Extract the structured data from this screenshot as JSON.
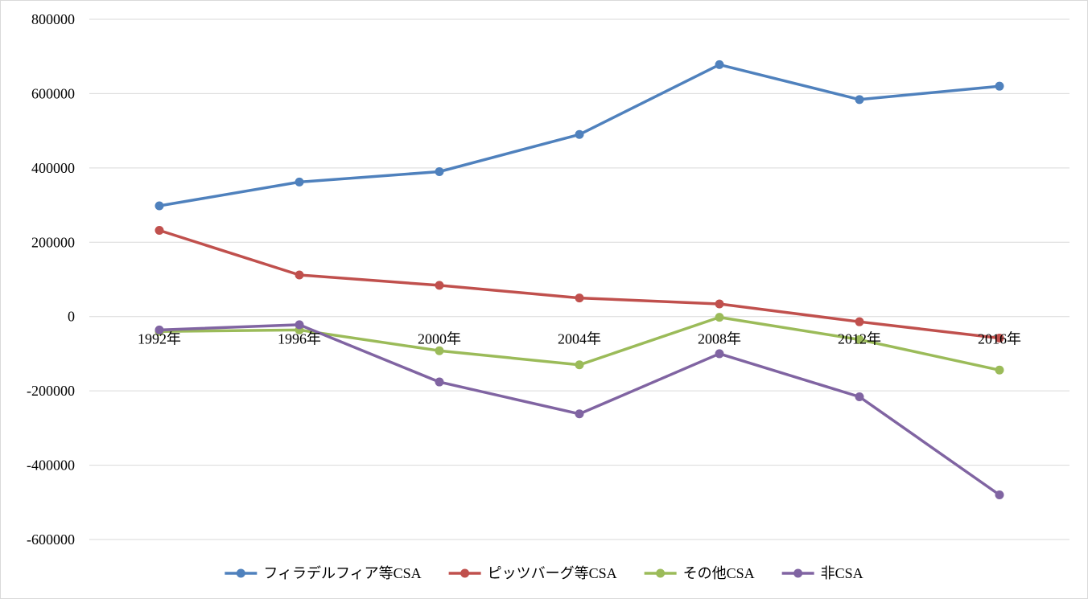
{
  "chart_data": {
    "type": "line",
    "title": "",
    "xlabel": "",
    "ylabel": "",
    "categories": [
      "1992年",
      "1996年",
      "2000年",
      "2004年",
      "2008年",
      "2012年",
      "2016年"
    ],
    "ylim": [
      -600000,
      800000
    ],
    "yticks": [
      800000,
      600000,
      400000,
      200000,
      0,
      -200000,
      -400000,
      -600000
    ],
    "y_tick_labels": [
      "800000",
      "600000",
      "400000",
      "200000",
      "0",
      "-200000",
      "-400000",
      "-600000"
    ],
    "grid": true,
    "legend_position": "bottom",
    "series": [
      {
        "name": "フィラデルフィア等CSA",
        "color": "#4f81bd",
        "values": [
          298000,
          362000,
          390000,
          490000,
          678000,
          584000,
          620000
        ]
      },
      {
        "name": "ピッツバーグ等CSA",
        "color": "#c0504d",
        "values": [
          232000,
          112000,
          84000,
          50000,
          34000,
          -14000,
          -58000
        ]
      },
      {
        "name": "その他CSA",
        "color": "#9bbb59",
        "values": [
          -40000,
          -36000,
          -92000,
          -130000,
          -2000,
          -62000,
          -144000
        ]
      },
      {
        "name": "非CSA",
        "color": "#8064a2",
        "values": [
          -36000,
          -22000,
          -176000,
          -262000,
          -100000,
          -216000,
          -480000
        ]
      }
    ]
  }
}
